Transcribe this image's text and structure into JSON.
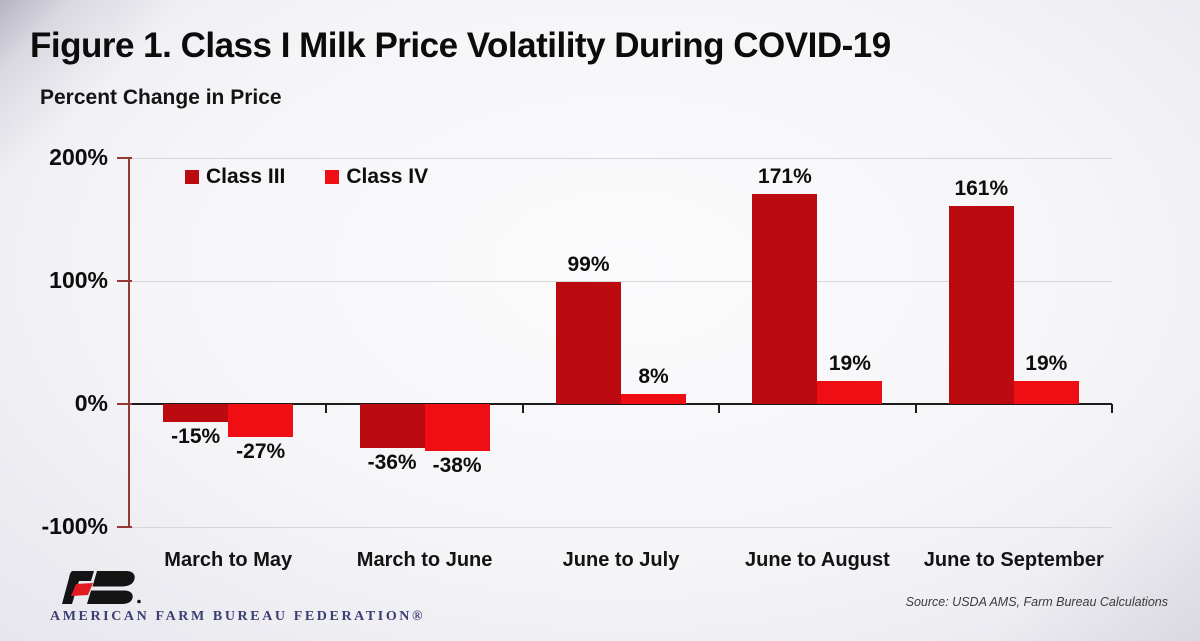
{
  "header": {
    "title": "Figure 1. Class I Milk Price Volatility During COVID-19",
    "subtitle": "Percent Change in Price"
  },
  "chart_data": {
    "type": "bar",
    "title": "Figure 1. Class I Milk Price Volatility During COVID-19",
    "ylabel": "Percent Change in Price",
    "xlabel": "",
    "categories": [
      "March to May",
      "March to June",
      "June to July",
      "June to August",
      "June to September"
    ],
    "series": [
      {
        "name": "Class III",
        "color": "#BB0B10",
        "values": [
          -15,
          -36,
          99,
          171,
          161
        ]
      },
      {
        "name": "Class IV",
        "color": "#EE0E13",
        "values": [
          -27,
          -38,
          8,
          19,
          19
        ]
      }
    ],
    "value_label_suffix": "%",
    "ylim": [
      -100,
      200
    ],
    "yticks": [
      {
        "value": 200,
        "label": "200%"
      },
      {
        "value": 100,
        "label": "100%"
      },
      {
        "value": 0,
        "label": "0%"
      },
      {
        "value": -100,
        "label": "-100%"
      }
    ],
    "grid": true,
    "legend_position": "top-left",
    "axis_color": "#953735",
    "gridline_color": "#d7d6d9",
    "zero_line_color": "#1c1c1c"
  },
  "footer": {
    "organization": "AMERICAN FARM BUREAU FEDERATION®",
    "source": "Source: USDA AMS, Farm Bureau Calculations",
    "logo_black": "#141414",
    "logo_red": "#e01b22"
  }
}
